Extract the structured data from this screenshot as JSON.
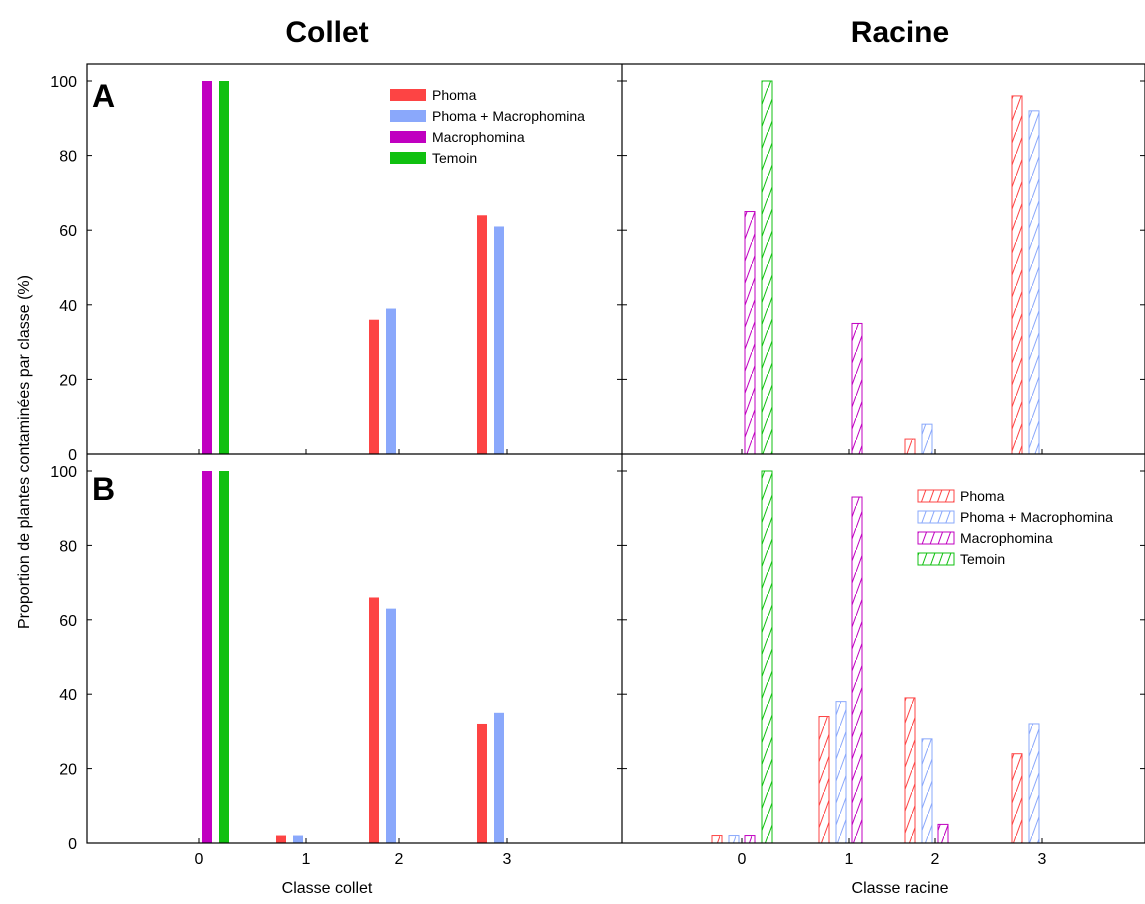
{
  "figure": {
    "left_title": "Collet",
    "right_title": "Racine",
    "ylabel": "Proportion de plantes contaminées par classe (%)",
    "xlabel_left": "Classe collet",
    "xlabel_right": "Classe racine"
  },
  "colors": {
    "Phoma": "#fd4444",
    "Phoma + Macrophomina": "#8aa8fb",
    "Macrophomina": "#c000c0",
    "Temoin": "#10c010"
  },
  "chart_data": [
    {
      "type": "bar",
      "panel": "A",
      "region": "Collet",
      "style": "solid",
      "categories": [
        "0",
        "1",
        "2",
        "3"
      ],
      "xlabel": "Classe collet",
      "ylabel": "Proportion de plantes contaminées par classe (%)",
      "ylim": [
        0,
        100
      ],
      "yticks": [
        0,
        20,
        40,
        60,
        80,
        100
      ],
      "legend": "top-right",
      "series": [
        {
          "name": "Phoma",
          "values": [
            0,
            0,
            36,
            64
          ]
        },
        {
          "name": "Phoma + Macrophomina",
          "values": [
            0,
            0,
            39,
            61
          ]
        },
        {
          "name": "Macrophomina",
          "values": [
            100,
            0,
            0,
            0
          ]
        },
        {
          "name": "Temoin",
          "values": [
            100,
            0,
            0,
            0
          ]
        }
      ]
    },
    {
      "type": "bar",
      "panel": "A",
      "region": "Racine",
      "style": "hatched",
      "categories": [
        "0",
        "1",
        "2",
        "3"
      ],
      "xlabel": "Classe racine",
      "ylim": [
        0,
        100
      ],
      "yticks": [
        0,
        20,
        40,
        60,
        80,
        100
      ],
      "series": [
        {
          "name": "Phoma",
          "values": [
            0,
            0,
            4,
            96
          ]
        },
        {
          "name": "Phoma + Macrophomina",
          "values": [
            0,
            0,
            8,
            92
          ]
        },
        {
          "name": "Macrophomina",
          "values": [
            65,
            35,
            0,
            0
          ]
        },
        {
          "name": "Temoin",
          "values": [
            100,
            0,
            0,
            0
          ]
        }
      ]
    },
    {
      "type": "bar",
      "panel": "B",
      "region": "Collet",
      "style": "solid",
      "categories": [
        "0",
        "1",
        "2",
        "3"
      ],
      "xlabel": "Classe collet",
      "ylabel": "Proportion de plantes contaminées par classe (%)",
      "ylim": [
        0,
        100
      ],
      "yticks": [
        0,
        20,
        40,
        60,
        80,
        100
      ],
      "series": [
        {
          "name": "Phoma",
          "values": [
            0,
            2,
            66,
            32
          ]
        },
        {
          "name": "Phoma + Macrophomina",
          "values": [
            0,
            2,
            63,
            35
          ]
        },
        {
          "name": "Macrophomina",
          "values": [
            100,
            0,
            0,
            0
          ]
        },
        {
          "name": "Temoin",
          "values": [
            100,
            0,
            0,
            0
          ]
        }
      ]
    },
    {
      "type": "bar",
      "panel": "B",
      "region": "Racine",
      "style": "hatched",
      "categories": [
        "0",
        "1",
        "2",
        "3"
      ],
      "xlabel": "Classe racine",
      "ylim": [
        0,
        100
      ],
      "yticks": [
        0,
        20,
        40,
        60,
        80,
        100
      ],
      "legend": "top-right",
      "series": [
        {
          "name": "Phoma",
          "values": [
            2,
            34,
            39,
            24
          ]
        },
        {
          "name": "Phoma + Macrophomina",
          "values": [
            2,
            38,
            28,
            32
          ]
        },
        {
          "name": "Macrophomina",
          "values": [
            2,
            93,
            5,
            0
          ]
        },
        {
          "name": "Temoin",
          "values": [
            100,
            0,
            0,
            0
          ]
        }
      ]
    }
  ]
}
